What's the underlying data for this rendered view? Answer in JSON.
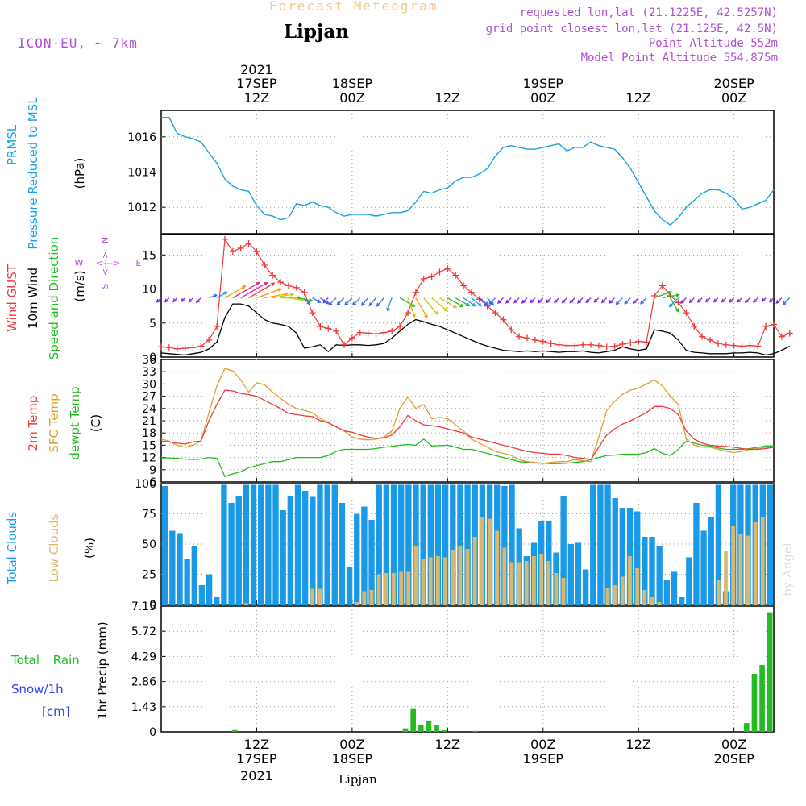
{
  "header": {
    "title": "Forecast Meteogram",
    "location": "Lipjan",
    "model": "ICON-EU, ~ 7km",
    "requested": "requested lon,lat (21.1225E, 42.5257N)",
    "grid_point": "grid point closest lon,lat (21.125E, 42.5N)",
    "point_altitude": "Point Altitude 552m",
    "model_altitude": "Model Point Altitude 554.875m",
    "watermark": "by Angel",
    "footer_location": "Lipjan"
  },
  "time_axis": {
    "year": "2021",
    "labels": [
      {
        "h": 12,
        "top": "17SEP",
        "sub": "12Z"
      },
      {
        "h": 24,
        "top": "18SEP",
        "sub": "00Z"
      },
      {
        "h": 36,
        "top": "",
        "sub": "12Z"
      },
      {
        "h": 48,
        "top": "19SEP",
        "sub": "00Z"
      },
      {
        "h": 60,
        "top": "",
        "sub": "12Z"
      },
      {
        "h": 72,
        "top": "20SEP",
        "sub": "00Z"
      }
    ],
    "start_hour": 0,
    "end_hour": 77
  },
  "colors": {
    "pressure": "#1aa0e6",
    "gust": "#ee3a3a",
    "wind": "#000000",
    "t2m": "#ee3a3a",
    "sfc": "#e0a030",
    "dewpt": "#22bb22",
    "total_clouds": "#1a9ae6",
    "low_clouds": "#d8b870",
    "rain": "#22bb22",
    "snow": "#3344ee",
    "purple": "#b04fd0"
  },
  "chart_data": [
    {
      "type": "line",
      "id": "pressure",
      "ylabel_1": "PRMSL",
      "ylabel_2": "Pressure Reduced to MSL",
      "unit": "(hPa)",
      "ylim": [
        1010.5,
        1017.5
      ],
      "yticks": [
        1012,
        1014,
        1016
      ],
      "series": [
        {
          "name": "PRMSL",
          "values": [
            1017.1,
            1017.1,
            1016.2,
            1016.0,
            1015.9,
            1015.7,
            1015.1,
            1014.5,
            1013.6,
            1013.2,
            1013.0,
            1012.9,
            1012.1,
            1011.6,
            1011.5,
            1011.3,
            1011.4,
            1012.2,
            1012.1,
            1012.3,
            1012.1,
            1012.0,
            1011.7,
            1011.5,
            1011.6,
            1011.6,
            1011.6,
            1011.5,
            1011.6,
            1011.7,
            1011.7,
            1011.8,
            1012.3,
            1012.9,
            1012.8,
            1013.0,
            1013.1,
            1013.5,
            1013.7,
            1013.7,
            1013.9,
            1014.2,
            1014.9,
            1015.4,
            1015.5,
            1015.4,
            1015.3,
            1015.3,
            1015.4,
            1015.5,
            1015.6,
            1015.2,
            1015.4,
            1015.4,
            1015.7,
            1015.5,
            1015.4,
            1015.3,
            1014.8,
            1014.2,
            1013.4,
            1012.6,
            1011.8,
            1011.3,
            1011.0,
            1011.4,
            1012.0,
            1012.4,
            1012.8,
            1013.0,
            1013.0,
            1012.8,
            1012.5,
            1011.9,
            1012.0,
            1012.2,
            1012.4,
            1013.0
          ]
        }
      ]
    },
    {
      "type": "line",
      "id": "wind",
      "ylabel_gust": "Wind GUST",
      "ylabel_wind": "10m Wind",
      "ylabel_dir": "Speed and Direction",
      "unit": "(m/s)",
      "compass_n": "N",
      "compass_s": "S",
      "compass_w": "W",
      "compass_e": "E",
      "compass_mid": "<--->",
      "ylim": [
        0,
        18
      ],
      "yticks": [
        0,
        5,
        10,
        15
      ],
      "arrow_level": 8.7,
      "series": [
        {
          "name": "Wind GUST",
          "values": [
            1.5,
            1.4,
            1.2,
            1.3,
            1.4,
            1.6,
            2.5,
            4.5,
            17.3,
            15.5,
            16.0,
            16.7,
            15.5,
            13.5,
            12.0,
            11.0,
            10.5,
            10.2,
            9.5,
            6.5,
            4.5,
            4.2,
            3.8,
            1.8,
            2.8,
            3.6,
            3.5,
            3.4,
            3.6,
            3.8,
            4.5,
            6.5,
            9.5,
            11.5,
            11.8,
            12.5,
            13.0,
            12.0,
            10.5,
            9.5,
            8.5,
            7.5,
            6.5,
            5.5,
            4.0,
            3.0,
            2.8,
            2.5,
            2.3,
            2.0,
            1.8,
            1.7,
            1.7,
            1.8,
            1.8,
            1.7,
            1.5,
            1.6,
            1.9,
            2.1,
            2.3,
            2.2,
            9.0,
            10.5,
            9.0,
            8.0,
            6.5,
            4.5,
            3.0,
            2.5,
            2.0,
            1.8,
            1.7,
            1.6,
            1.7,
            1.6,
            4.5,
            4.8,
            3.0,
            3.5
          ]
        },
        {
          "name": "10m Wind",
          "values": [
            0.6,
            0.5,
            0.4,
            0.3,
            0.5,
            0.7,
            1.2,
            2.2,
            5.8,
            7.8,
            7.8,
            7.5,
            6.5,
            5.5,
            5.0,
            4.8,
            4.5,
            3.5,
            1.3,
            1.5,
            1.8,
            0.8,
            1.8,
            1.7,
            1.8,
            1.8,
            1.7,
            1.8,
            2.0,
            2.8,
            3.8,
            4.8,
            5.5,
            5.2,
            4.8,
            4.5,
            4.0,
            3.5,
            3.0,
            2.5,
            2.0,
            1.6,
            1.3,
            1.0,
            0.9,
            0.8,
            0.9,
            0.8,
            0.9,
            0.8,
            0.7,
            0.8,
            0.8,
            0.9,
            0.7,
            0.6,
            0.8,
            1.0,
            1.5,
            1.2,
            1.0,
            1.2,
            4.0,
            3.8,
            3.5,
            2.5,
            1.0,
            0.7,
            0.6,
            0.5,
            0.5,
            0.5,
            0.6,
            0.6,
            0.7,
            0.6,
            0.3,
            0.5,
            1.0,
            1.6
          ]
        },
        {
          "name": "Direction (deg toward)",
          "values": [
            225,
            225,
            225,
            225,
            225,
            225,
            70,
            60,
            60,
            60,
            60,
            60,
            70,
            80,
            80,
            90,
            100,
            100,
            140,
            120,
            125,
            225,
            225,
            225,
            225,
            225,
            220,
            220,
            220,
            200,
            120,
            160,
            150,
            140,
            130,
            120,
            120,
            120,
            125,
            130,
            130,
            140,
            225,
            225,
            225,
            225,
            225,
            225,
            225,
            225,
            225,
            225,
            225,
            225,
            225,
            225,
            225,
            225,
            225,
            225,
            225,
            225,
            70,
            80,
            150,
            225,
            225,
            225,
            225,
            225,
            225,
            225,
            225,
            225,
            225,
            225,
            225,
            225,
            225,
            225
          ]
        }
      ]
    },
    {
      "type": "line",
      "id": "temperature",
      "ylabel_t2m": "2m Temp",
      "ylabel_sfc": "SFC Temp",
      "ylabel_dew": "dewpt Temp",
      "unit": "(C)",
      "ylim": [
        6,
        36
      ],
      "yticks": [
        6,
        9,
        12,
        15,
        18,
        21,
        24,
        27,
        30,
        33,
        36
      ],
      "series": [
        {
          "name": "2m Temp",
          "values": [
            16.0,
            15.8,
            15.5,
            15.3,
            15.8,
            16.0,
            21.0,
            25.0,
            28.5,
            28.3,
            27.7,
            27.4,
            27.0,
            26.0,
            25.0,
            24.0,
            22.8,
            22.5,
            22.2,
            22.0,
            21.0,
            20.5,
            19.5,
            18.5,
            18.2,
            17.5,
            17.0,
            16.7,
            16.8,
            17.5,
            19.5,
            22.3,
            21.0,
            20.0,
            19.8,
            19.5,
            19.0,
            18.5,
            18.0,
            17.0,
            16.5,
            16.0,
            15.5,
            15.0,
            14.5,
            14.0,
            13.5,
            13.2,
            13.0,
            12.8,
            12.8,
            12.5,
            12.0,
            11.8,
            11.5,
            14.5,
            17.5,
            19.0,
            20.2,
            21.0,
            22.0,
            23.0,
            24.5,
            24.5,
            24.0,
            22.5,
            18.5,
            16.5,
            15.5,
            15.0,
            14.8,
            14.7,
            14.5,
            14.2,
            14.0,
            14.0,
            14.2,
            14.5
          ]
        },
        {
          "name": "SFC Temp",
          "values": [
            16.5,
            16.0,
            15.0,
            14.5,
            15.0,
            16.0,
            23.0,
            29.5,
            33.8,
            33.2,
            31.0,
            28.0,
            30.3,
            29.8,
            28.0,
            26.5,
            25.0,
            24.0,
            23.5,
            23.0,
            21.5,
            20.5,
            19.5,
            18.5,
            17.0,
            16.5,
            16.3,
            16.5,
            17.0,
            18.5,
            24.0,
            26.8,
            24.0,
            25.0,
            21.5,
            21.8,
            21.5,
            20.0,
            18.5,
            16.5,
            15.5,
            14.5,
            13.5,
            13.0,
            12.5,
            11.5,
            11.0,
            10.8,
            10.5,
            10.8,
            11.0,
            11.0,
            11.5,
            11.2,
            11.0,
            17.0,
            23.5,
            25.8,
            27.5,
            28.5,
            29.0,
            30.0,
            31.0,
            29.5,
            27.0,
            25.0,
            16.5,
            15.0,
            14.5,
            14.5,
            14.0,
            13.5,
            13.2,
            13.5,
            14.0,
            14.2,
            14.5,
            14.5
          ]
        },
        {
          "name": "dewpt Temp",
          "values": [
            11.9,
            11.9,
            11.8,
            11.6,
            11.5,
            11.6,
            12.0,
            11.8,
            7.3,
            8.0,
            8.5,
            9.5,
            10.0,
            10.5,
            11.0,
            11.0,
            11.5,
            12.0,
            12.0,
            12.0,
            12.0,
            12.5,
            13.5,
            14.0,
            14.0,
            14.0,
            14.0,
            14.2,
            14.5,
            14.7,
            15.0,
            15.2,
            15.0,
            16.5,
            14.8,
            14.9,
            15.0,
            14.5,
            14.0,
            14.0,
            13.5,
            13.0,
            12.5,
            12.0,
            11.5,
            11.0,
            10.8,
            10.7,
            10.6,
            10.5,
            10.5,
            10.6,
            10.8,
            11.0,
            11.5,
            12.0,
            12.5,
            12.6,
            12.8,
            12.8,
            12.8,
            13.2,
            14.2,
            13.0,
            12.5,
            14.0,
            16.0,
            15.5,
            15.0,
            14.8,
            14.3,
            14.0,
            14.0,
            14.0,
            14.2,
            14.5,
            14.8,
            14.8
          ]
        }
      ]
    },
    {
      "type": "bar",
      "id": "clouds",
      "ylabel_total": "Total Clouds",
      "ylabel_low": "Low Clouds",
      "unit": "(%)",
      "ylim": [
        0,
        100
      ],
      "yticks": [
        0,
        25,
        50,
        75,
        100
      ],
      "series": [
        {
          "name": "Total Clouds",
          "values": [
            98,
            61,
            59,
            38,
            48,
            16,
            25,
            6,
            99,
            84,
            90,
            99,
            99,
            99,
            99,
            99,
            78,
            90,
            99,
            94,
            89,
            99,
            99,
            99,
            84,
            31,
            75,
            81,
            70,
            99,
            99,
            99,
            99,
            99,
            99,
            99,
            99,
            99,
            99,
            99,
            99,
            99,
            99,
            99,
            99,
            99,
            98,
            99,
            63,
            40,
            51,
            69,
            69,
            43,
            90,
            50,
            51,
            29,
            99,
            99,
            99,
            88,
            80,
            80,
            77,
            56,
            56,
            48,
            20,
            27,
            6,
            39,
            84,
            61,
            72,
            99,
            11,
            99,
            99,
            99,
            99,
            99,
            99
          ]
        },
        {
          "name": "Low Clouds",
          "values": [
            0,
            0,
            0,
            0,
            0,
            0,
            0,
            0,
            0,
            0,
            0,
            1,
            0,
            0,
            0,
            0,
            0,
            0,
            0,
            0,
            13,
            13,
            0,
            0,
            0,
            0,
            2,
            11,
            12,
            25,
            26,
            26,
            27,
            27,
            48,
            38,
            39,
            40,
            39,
            45,
            48,
            46,
            56,
            72,
            71,
            61,
            47,
            35,
            35,
            36,
            40,
            42,
            36,
            26,
            22,
            0,
            0,
            0,
            0,
            0,
            14,
            16,
            23,
            40,
            30,
            12,
            6,
            2,
            0,
            0,
            0,
            0,
            0,
            0,
            0,
            20,
            44,
            65,
            58,
            57,
            68,
            72
          ]
        }
      ]
    },
    {
      "type": "bar",
      "id": "precip",
      "ylabel_rain": "Total Rain",
      "ylabel_snow": "Snow/1h",
      "ylabel_snow_unit": "[cm]",
      "unit": "1hr Precip (mm)",
      "ylim": [
        0,
        7.15
      ],
      "yticks": [
        "0",
        "1.43",
        "2.86",
        "4.29",
        "5.72",
        "7.15"
      ],
      "ytick_values": [
        0,
        1.43,
        2.86,
        4.29,
        5.72,
        7.15
      ],
      "series": [
        {
          "name": "Total Rain",
          "values": [
            0,
            0,
            0,
            0,
            0,
            0,
            0,
            0,
            0,
            0.1,
            0,
            0,
            0,
            0,
            0,
            0,
            0,
            0,
            0,
            0,
            0,
            0,
            0,
            0,
            0,
            0,
            0,
            0,
            0,
            0,
            0,
            0.2,
            1.3,
            0.4,
            0.6,
            0.4,
            0.1,
            0,
            0,
            0,
            0.05,
            0,
            0,
            0,
            0,
            0,
            0,
            0,
            0,
            0,
            0,
            0,
            0,
            0,
            0,
            0,
            0,
            0,
            0,
            0,
            0,
            0,
            0,
            0,
            0,
            0,
            0,
            0,
            0,
            0,
            0,
            0,
            0,
            0,
            0,
            0.5,
            3.3,
            3.8,
            6.8
          ]
        }
      ]
    }
  ]
}
